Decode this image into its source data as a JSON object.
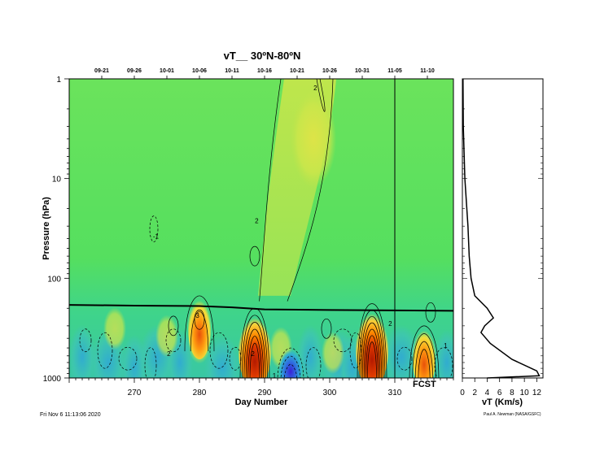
{
  "chart_data": [
    {
      "type": "heatmap",
      "title": "vT__ 30ºN-80ºN",
      "xlabel": "Day Number",
      "ylabel": "Pressure (hPa)",
      "xlim": [
        260,
        319
      ],
      "ylim": [
        1000,
        1
      ],
      "yscale": "log",
      "x_ticks": [
        270,
        280,
        290,
        300,
        310
      ],
      "y_ticks": [
        {
          "value": 1,
          "label": "1"
        },
        {
          "value": 10,
          "label": "10"
        },
        {
          "value": 100,
          "label": "100"
        },
        {
          "value": 1000,
          "label": "1000"
        }
      ],
      "top_date_ticks": [
        {
          "day": 265,
          "label": "09-21"
        },
        {
          "day": 270,
          "label": "09-26"
        },
        {
          "day": 275,
          "label": "10-01"
        },
        {
          "day": 280,
          "label": "10-06"
        },
        {
          "day": 285,
          "label": "10-11"
        },
        {
          "day": 290,
          "label": "10-16"
        },
        {
          "day": 295,
          "label": "10-21"
        },
        {
          "day": 300,
          "label": "10-26"
        },
        {
          "day": 305,
          "label": "10-31"
        },
        {
          "day": 310,
          "label": "11-05"
        },
        {
          "day": 315,
          "label": "11-10"
        }
      ],
      "forecast_start_day": 310,
      "forecast_label": "FCST",
      "tropopause_line": {
        "x": [
          260,
          270,
          280,
          285,
          290,
          300,
          310,
          319
        ],
        "pressure": [
          185,
          188,
          190,
          196,
          205,
          208,
          210,
          212
        ]
      },
      "features": [
        {
          "kind": "positive-core",
          "day": 288.5,
          "pressure_range": [
            200,
            1000
          ],
          "peak": 12
        },
        {
          "kind": "positive-core",
          "day": 306.5,
          "pressure_range": [
            180,
            1000
          ],
          "peak": 14
        },
        {
          "kind": "positive-core",
          "day": 314.5,
          "pressure_range": [
            300,
            1000
          ],
          "peak": 8
        },
        {
          "kind": "positive-core",
          "day": 280,
          "pressure_range": [
            150,
            500
          ],
          "peak": 3
        },
        {
          "kind": "negative-core",
          "day": 294,
          "pressure_range": [
            500,
            1000
          ],
          "peak": -4
        },
        {
          "kind": "positive-plume",
          "day_range": [
            289,
            300
          ],
          "pressure_range": [
            1,
            150
          ],
          "peak": 2
        }
      ],
      "contour_labels": [
        "2",
        "2",
        "-1",
        "3",
        "2",
        "1",
        "2",
        "2",
        "1"
      ]
    },
    {
      "type": "line",
      "xlabel": "vT (Km/s)",
      "xlim": [
        0,
        13
      ],
      "ylim": [
        1000,
        1
      ],
      "yscale": "log",
      "x_ticks": [
        0,
        2,
        4,
        6,
        8,
        10,
        12
      ],
      "series": [
        {
          "x": [
            0.1,
            0.15,
            0.4,
            0.9,
            1.1,
            1.4,
            2.0,
            4.0,
            5.0,
            3.6,
            3.0,
            4.5,
            8.0,
            12.0,
            12.4,
            4.0
          ],
          "pressure": [
            1,
            3,
            10,
            30,
            60,
            100,
            150,
            200,
            250,
            300,
            350,
            450,
            650,
            850,
            950,
            1000
          ]
        }
      ]
    }
  ],
  "footer": {
    "timestamp": "Fri Nov  6 11:13:06 2020",
    "credit": "Paul A. Newman (NASA/GSFC)"
  },
  "colors": {
    "plot_bg": "#5ee65a",
    "tropopause": "#000000"
  }
}
